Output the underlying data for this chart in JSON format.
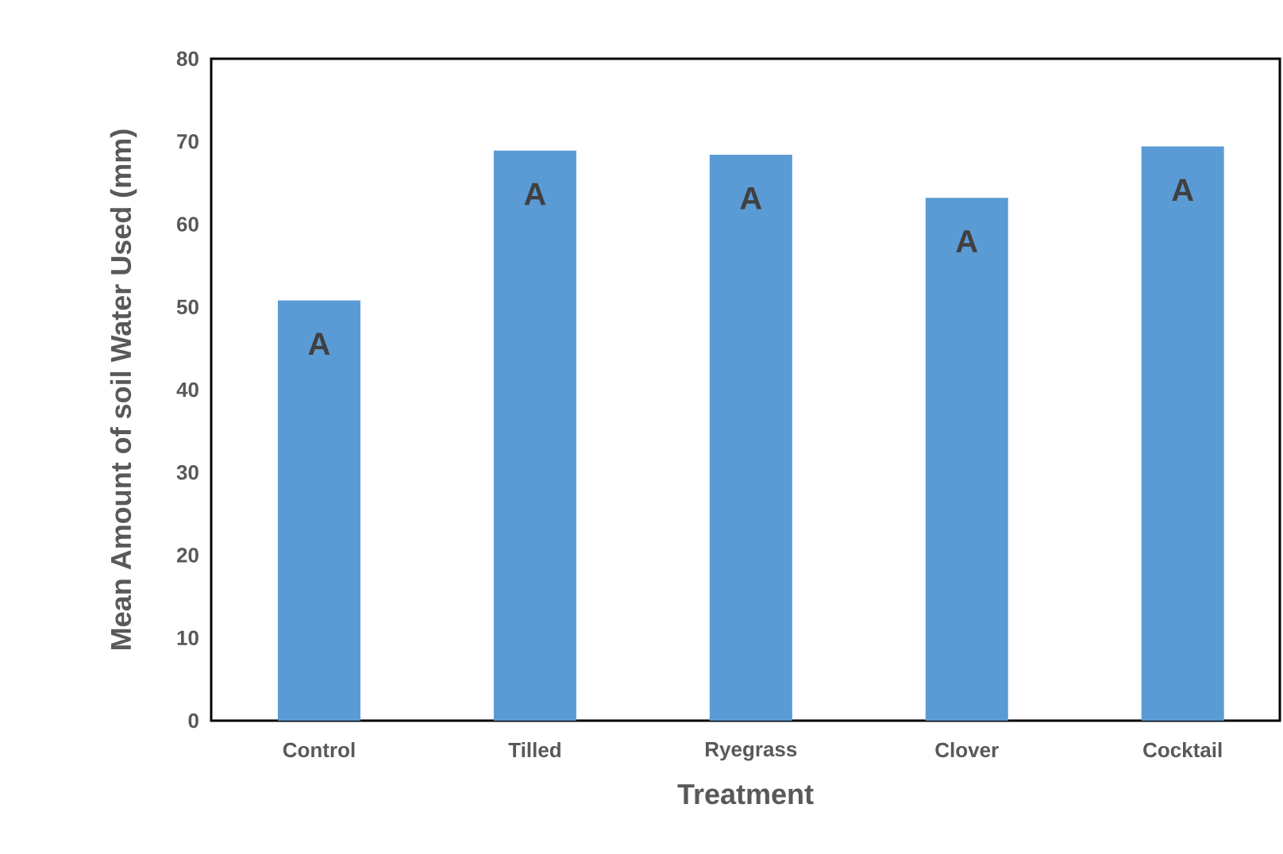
{
  "chart_data": {
    "type": "bar",
    "xlabel": "Treatment",
    "ylabel": "Mean Amount of soil Water Used (mm)",
    "categories": [
      "Control",
      "Tilled",
      "Ryegrass",
      "Clover",
      "Cocktail"
    ],
    "values": [
      50.8,
      68.9,
      68.4,
      63.2,
      69.4
    ],
    "color": "#5b9bd5",
    "ylim": [
      0,
      80
    ],
    "yticks": [
      0,
      10,
      20,
      30,
      40,
      50,
      60,
      70,
      80
    ],
    "grid": false,
    "annotations": [
      "A",
      "A",
      "A",
      "A",
      "A"
    ]
  }
}
